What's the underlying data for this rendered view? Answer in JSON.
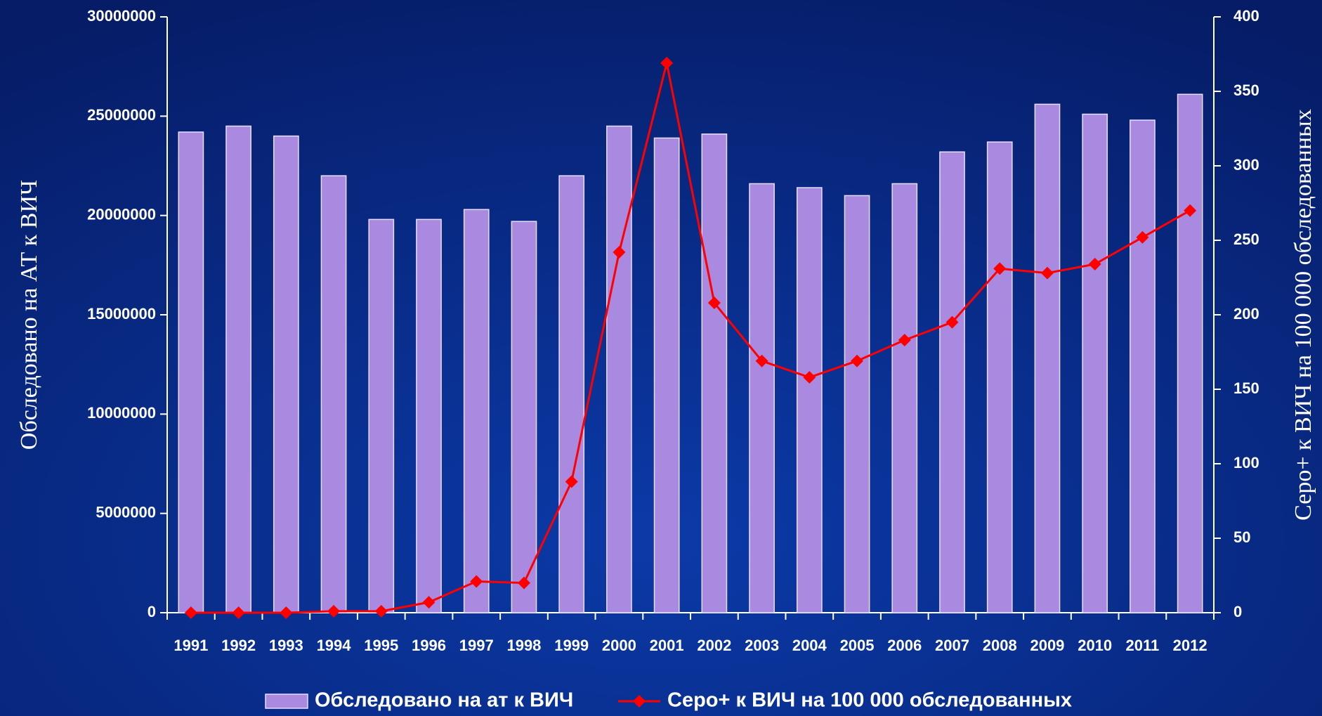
{
  "chart_data": {
    "type": "bar-line",
    "y_label": "Обследовано на АТ к ВИЧ",
    "y2_label": "Серо+  к ВИЧ на 100 000 обследованных",
    "categories": [
      "1991",
      "1992",
      "1993",
      "1994",
      "1995",
      "1996",
      "1997",
      "1998",
      "1999",
      "2000",
      "2001",
      "2002",
      "2003",
      "2004",
      "2005",
      "2006",
      "2007",
      "2008",
      "2009",
      "2010",
      "2011",
      "2012"
    ],
    "series": [
      {
        "name": "Обследовано на ат к ВИЧ",
        "type": "bar",
        "color": "#a98ae0",
        "values": [
          24200000,
          24500000,
          24000000,
          22000000,
          19800000,
          19800000,
          20300000,
          19700000,
          22000000,
          24500000,
          23900000,
          24100000,
          21600000,
          21400000,
          21000000,
          21600000,
          23200000,
          23700000,
          25600000,
          25100000,
          24800000,
          26100000
        ]
      },
      {
        "name": "Серо+ к ВИЧ на 100 000 обследованных",
        "type": "line",
        "color": "#ff0000",
        "axis": "y2",
        "values": [
          0,
          0,
          0,
          1,
          1,
          7,
          21,
          20,
          88,
          242,
          369,
          208,
          169,
          158,
          169,
          183,
          195,
          231,
          228,
          234,
          252,
          270
        ]
      }
    ],
    "ylim": [
      0,
      30000000
    ],
    "yticks": [
      0,
      5000000,
      10000000,
      15000000,
      20000000,
      25000000,
      30000000
    ],
    "y2lim": [
      0,
      400
    ],
    "y2ticks": [
      0,
      50,
      100,
      150,
      200,
      250,
      300,
      350,
      400
    ],
    "legend": "bottom"
  }
}
